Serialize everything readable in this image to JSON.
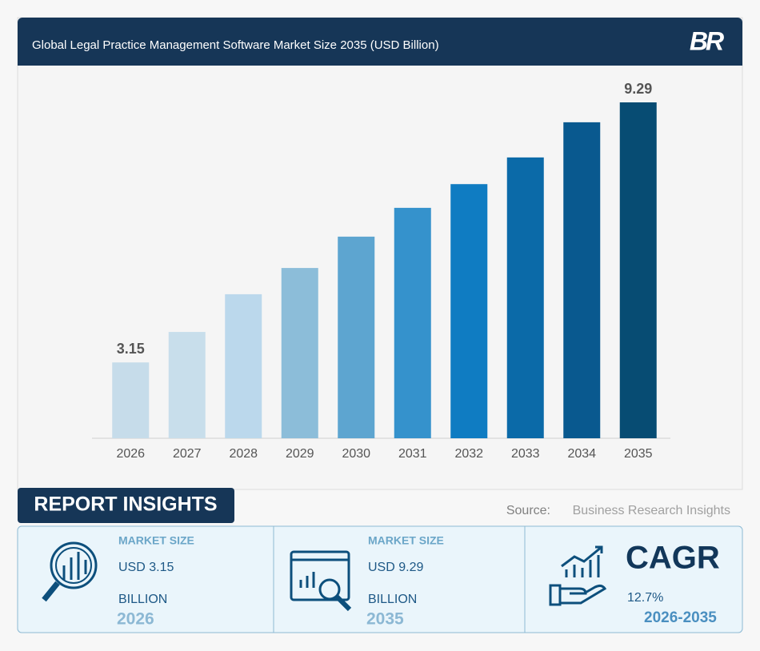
{
  "chart_data": {
    "type": "bar",
    "title": "Global Legal Practice Management Software Market Size 2035 (USD Billion)",
    "logo": "BR",
    "categories": [
      "2026",
      "2027",
      "2028",
      "2029",
      "2030",
      "2031",
      "2032",
      "2033",
      "2034",
      "2035"
    ],
    "values": [
      3.15,
      3.87,
      4.76,
      5.38,
      6.12,
      6.8,
      7.36,
      7.99,
      8.82,
      9.29
    ],
    "colors": [
      "#c6dcea",
      "#c8deeb",
      "#bbd8ec",
      "#8cbdd9",
      "#5da5d0",
      "#3592cc",
      "#0f7cc2",
      "#0b6aa8",
      "#09598f",
      "#074c73"
    ],
    "label_indices": [
      0,
      9
    ],
    "ylim": [
      1.36,
      9.29
    ]
  },
  "insights": {
    "title": "REPORT INSIGHTS",
    "source_label": "Source:",
    "source": "Business Research Insights",
    "cards": [
      {
        "heading": "MARKET SIZE",
        "value": "USD 3.15",
        "unit": "BILLION",
        "year": "2026"
      },
      {
        "heading": "MARKET SIZE",
        "value": "USD 9.29",
        "unit": "BILLION",
        "year": "2035"
      },
      {
        "heading": "CAGR",
        "value": "12.7%",
        "period": "2026-2035"
      }
    ]
  }
}
